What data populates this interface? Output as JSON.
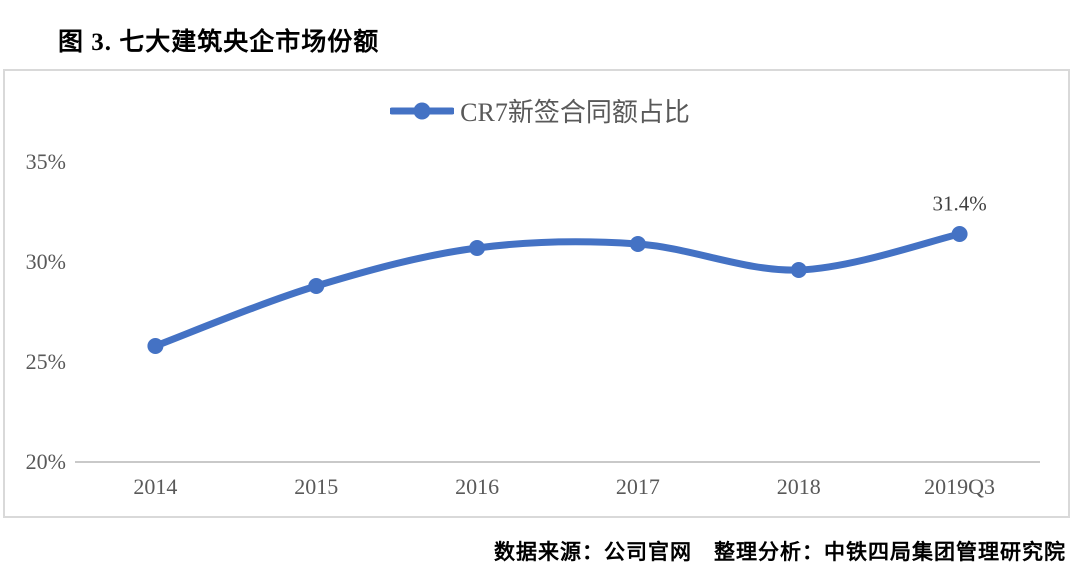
{
  "page": {
    "title": "图 3. 七大建筑央企市场份额",
    "source_note": "数据来源：公司官网　整理分析：中铁四局集团管理研究院"
  },
  "chart_data": {
    "type": "line",
    "title": "图 3. 七大建筑央企市场份额",
    "categories": [
      "2014",
      "2015",
      "2016",
      "2017",
      "2018",
      "2019Q3"
    ],
    "series": [
      {
        "name": "CR7新签合同额占比",
        "values": [
          25.8,
          28.8,
          30.7,
          30.9,
          29.6,
          31.4
        ]
      }
    ],
    "xlabel": "",
    "ylabel": "",
    "ylim": [
      20,
      35
    ],
    "yticks": [
      20,
      25,
      30,
      35
    ],
    "ytick_labels": [
      "20%",
      "25%",
      "30%",
      "35%"
    ],
    "legend_position": "top-center",
    "grid": false,
    "line_style": "smooth",
    "markers": "circle",
    "annotations": [
      {
        "text": "31.4%",
        "point_index": 5,
        "position": "above"
      }
    ],
    "colors": {
      "series": "#4472C4",
      "axis_line": "#c9c9c9",
      "tick_label": "#595959",
      "annotation": "#404040",
      "frame_border": "#d9d9d9",
      "title": "#000000"
    }
  }
}
